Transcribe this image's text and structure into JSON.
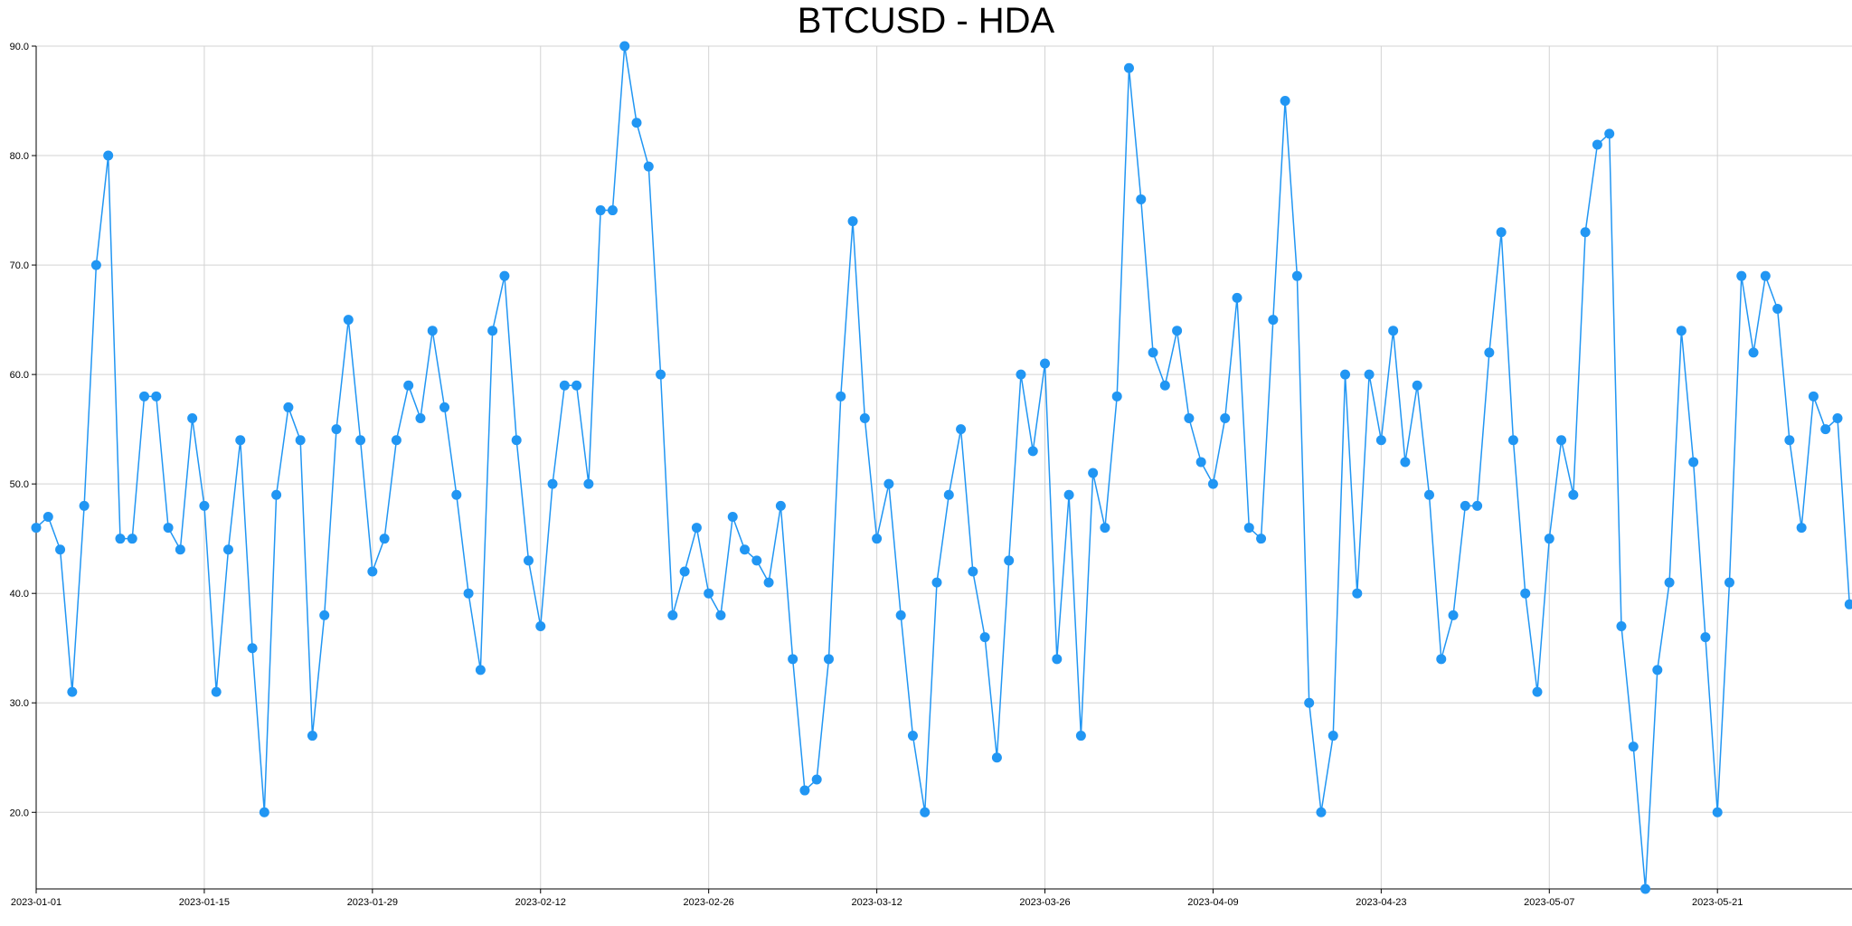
{
  "chart_data": {
    "type": "line",
    "title": "BTCUSD - HDA",
    "xlabel": "",
    "ylabel": "",
    "x_start": "2023-01-01",
    "x_end": "2023-06-01",
    "ylim": [
      13,
      90
    ],
    "grid": true,
    "legend": "none",
    "x_ticks": [
      "2023-01-01",
      "2023-01-15",
      "2023-01-29",
      "2023-02-12",
      "2023-02-26",
      "2023-03-12",
      "2023-03-26",
      "2023-04-09",
      "2023-04-23",
      "2023-05-07",
      "2023-05-21"
    ],
    "y_ticks": [
      "20.0",
      "30.0",
      "40.0",
      "50.0",
      "60.0",
      "70.0",
      "80.0",
      "90.0"
    ],
    "series": [
      {
        "color": "#2196f3",
        "values": [
          46,
          47,
          44,
          31,
          48,
          70,
          80,
          45,
          45,
          58,
          58,
          46,
          44,
          56,
          48,
          31,
          44,
          54,
          35,
          20,
          49,
          57,
          54,
          27,
          38,
          55,
          65,
          54,
          42,
          45,
          54,
          59,
          56,
          64,
          57,
          49,
          40,
          33,
          64,
          69,
          54,
          43,
          37,
          50,
          59,
          59,
          50,
          75,
          75,
          90,
          83,
          79,
          60,
          38,
          42,
          46,
          40,
          38,
          47,
          44,
          43,
          41,
          48,
          34,
          22,
          23,
          34,
          58,
          74,
          56,
          45,
          50,
          38,
          27,
          20,
          41,
          49,
          55,
          42,
          36,
          25,
          43,
          60,
          53,
          61,
          34,
          49,
          27,
          51,
          46,
          58,
          88,
          76,
          62,
          59,
          64,
          56,
          52,
          50,
          56,
          67,
          46,
          45,
          65,
          85,
          69,
          30,
          20,
          27,
          60,
          40,
          60,
          54,
          64,
          52,
          59,
          49,
          34,
          38,
          48,
          48,
          62,
          73,
          54,
          40,
          31,
          45,
          54,
          49,
          73,
          81,
          82,
          37,
          26,
          13,
          33,
          41,
          64,
          52,
          36,
          20,
          41,
          69,
          62,
          69,
          66,
          54,
          46,
          58,
          55,
          56,
          39
        ]
      }
    ]
  }
}
